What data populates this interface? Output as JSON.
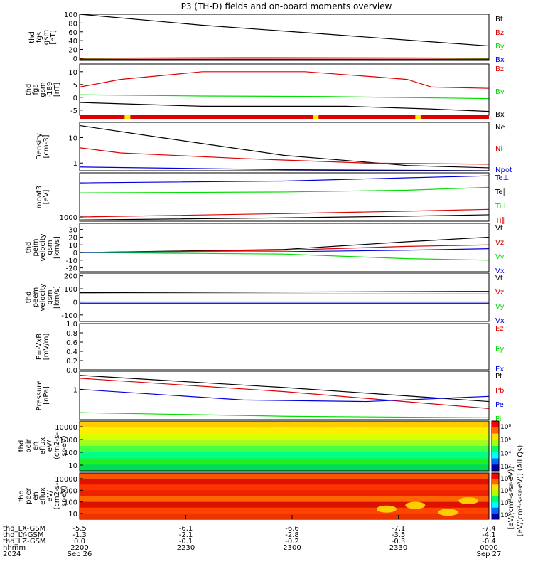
{
  "title": "P3 (TH-D) fields and on-board moments overview",
  "colors": {
    "black": "#000000",
    "red": "#dd0000",
    "green": "#00dd00",
    "blue": "#0000dd",
    "yellow": "#ffee00"
  },
  "chart_data": [
    {
      "type": "line",
      "ylabel": [
        "thd",
        "fgs",
        "gsm",
        "[nT]"
      ],
      "yticks": [
        "100",
        "80",
        "60",
        "40",
        "20",
        "0"
      ],
      "ylim": [
        -5,
        100
      ],
      "series": [
        {
          "name": "Bt",
          "color": "black",
          "points": [
            [
              0,
              100
            ],
            [
              0.3,
              75
            ],
            [
              0.6,
              55
            ],
            [
              0.85,
              38
            ],
            [
              1,
              28
            ]
          ]
        },
        {
          "name": "Bz",
          "color": "red",
          "points": [
            [
              0,
              -2
            ],
            [
              1,
              -2
            ]
          ]
        },
        {
          "name": "By",
          "color": "green",
          "points": [
            [
              0,
              0
            ],
            [
              0.4,
              2
            ],
            [
              0.8,
              1
            ],
            [
              1,
              0
            ]
          ]
        },
        {
          "name": "Bx",
          "color": "blue",
          "points": [
            [
              0,
              -3
            ],
            [
              1,
              -3
            ]
          ]
        }
      ]
    },
    {
      "type": "line",
      "ylabel": [
        "thd",
        "fgs",
        "gsm",
        "-189",
        "[nT]"
      ],
      "yticks": [
        "10",
        "5",
        "0",
        "-5"
      ],
      "ylim": [
        -7,
        13
      ],
      "series": [
        {
          "name": "Bz",
          "color": "red",
          "points": [
            [
              0,
              4
            ],
            [
              0.1,
              7
            ],
            [
              0.3,
              10
            ],
            [
              0.55,
              10
            ],
            [
              0.72,
              8
            ],
            [
              0.8,
              7
            ],
            [
              0.86,
              4
            ],
            [
              1,
              3.5
            ]
          ]
        },
        {
          "name": "By",
          "color": "green",
          "points": [
            [
              0,
              1
            ],
            [
              0.3,
              0.5
            ],
            [
              0.6,
              0.3
            ],
            [
              1,
              -0.5
            ]
          ]
        },
        {
          "name": "Bx",
          "color": "black",
          "points": [
            [
              0,
              -2
            ],
            [
              0.3,
              -3.5
            ],
            [
              0.65,
              -3.5
            ],
            [
              0.85,
              -4.5
            ],
            [
              1,
              -5.5
            ]
          ]
        }
      ]
    },
    {
      "type": "line",
      "ylabel": [
        "Density",
        "[cm-3]"
      ],
      "yticks": [
        "10",
        "1"
      ],
      "log": true,
      "ylim": [
        0.5,
        40
      ],
      "series": [
        {
          "name": "Ne",
          "color": "black",
          "points": [
            [
              0,
              30
            ],
            [
              0.2,
              10
            ],
            [
              0.5,
              2
            ],
            [
              0.8,
              0.8
            ],
            [
              1,
              0.65
            ]
          ]
        },
        {
          "name": "Ni",
          "color": "red",
          "points": [
            [
              0,
              4
            ],
            [
              0.1,
              2.5
            ],
            [
              0.4,
              1.5
            ],
            [
              0.7,
              1
            ],
            [
              1,
              0.9
            ]
          ]
        },
        {
          "name": "Npot",
          "color": "blue",
          "points": [
            [
              0,
              0.7
            ],
            [
              0.5,
              0.55
            ],
            [
              1,
              0.5
            ]
          ]
        }
      ]
    },
    {
      "type": "line",
      "ylabel": [
        "moat3",
        "[eV]"
      ],
      "yticks": [
        "1000"
      ],
      "log": true,
      "ylim": [
        600,
        200000
      ],
      "series": [
        {
          "name": "Te⊥",
          "color": "blue",
          "points": [
            [
              0,
              60000
            ],
            [
              0.5,
              75000
            ],
            [
              0.8,
              110000
            ],
            [
              1,
              140000
            ]
          ]
        },
        {
          "name": "Te∥",
          "color": "black",
          "points": [
            [
              0,
              700
            ],
            [
              0.5,
              900
            ],
            [
              0.8,
              1100
            ],
            [
              1,
              1300
            ]
          ]
        },
        {
          "name": "Ti⊥",
          "color": "green",
          "points": [
            [
              0,
              18000
            ],
            [
              0.5,
              20000
            ],
            [
              0.8,
              25000
            ],
            [
              1,
              35000
            ]
          ]
        },
        {
          "name": "Ti∥",
          "color": "red",
          "points": [
            [
              0,
              1000
            ],
            [
              0.5,
              1500
            ],
            [
              0.8,
              2000
            ],
            [
              1,
              2500
            ]
          ]
        }
      ]
    },
    {
      "type": "line",
      "ylabel": [
        "thd",
        "peim",
        "velocity",
        "gsm",
        "[km/s]"
      ],
      "yticks": [
        "30",
        "20",
        "10",
        "0",
        "-10",
        "-20"
      ],
      "ylim": [
        -25,
        38
      ],
      "series": [
        {
          "name": "Vt",
          "color": "black",
          "points": [
            [
              0,
              0
            ],
            [
              0.5,
              4
            ],
            [
              0.8,
              14
            ],
            [
              1,
              20
            ]
          ]
        },
        {
          "name": "Vz",
          "color": "red",
          "points": [
            [
              0,
              0
            ],
            [
              0.5,
              3
            ],
            [
              0.8,
              8
            ],
            [
              1,
              10
            ]
          ]
        },
        {
          "name": "Vy",
          "color": "green",
          "points": [
            [
              0,
              0
            ],
            [
              0.5,
              -2
            ],
            [
              0.8,
              -8
            ],
            [
              1,
              -10
            ]
          ]
        },
        {
          "name": "Vx",
          "color": "blue",
          "points": [
            [
              0,
              0
            ],
            [
              0.5,
              1
            ],
            [
              0.8,
              3
            ],
            [
              1,
              5
            ]
          ]
        }
      ]
    },
    {
      "type": "line",
      "ylabel": [
        "thd",
        "peem",
        "velocity",
        "gsm",
        "[km/s]"
      ],
      "yticks": [
        "200",
        "100",
        "0",
        "-100"
      ],
      "ylim": [
        -150,
        220
      ],
      "series": [
        {
          "name": "Vt",
          "color": "black",
          "points": [
            [
              0,
              70
            ],
            [
              1,
              80
            ]
          ]
        },
        {
          "name": "Vz",
          "color": "red",
          "points": [
            [
              0,
              60
            ],
            [
              1,
              60
            ]
          ]
        },
        {
          "name": "Vy",
          "color": "green",
          "points": [
            [
              0,
              0
            ],
            [
              1,
              0
            ]
          ]
        },
        {
          "name": "Vx",
          "color": "blue",
          "points": [
            [
              0,
              -10
            ],
            [
              1,
              -10
            ]
          ]
        }
      ]
    },
    {
      "type": "line",
      "ylabel": [
        "E=-VxB",
        "[mV/m]"
      ],
      "yticks": [
        "1.0",
        "0.8",
        "0.6",
        "0.4",
        "0.2",
        "0.0"
      ],
      "ylim": [
        0,
        1
      ],
      "series": [
        {
          "name": "Ez",
          "color": "red",
          "points": []
        },
        {
          "name": "Ey",
          "color": "green",
          "points": []
        },
        {
          "name": "Ex",
          "color": "blue",
          "points": []
        }
      ]
    },
    {
      "type": "line",
      "ylabel": [
        "Pressure",
        "[nPa]"
      ],
      "yticks": [
        "1"
      ],
      "log": true,
      "ylim": [
        0.05,
        6
      ],
      "series": [
        {
          "name": "Pt",
          "color": "black",
          "points": [
            [
              0,
              4
            ],
            [
              0.5,
              1.2
            ],
            [
              1,
              0.3
            ]
          ]
        },
        {
          "name": "Pb",
          "color": "red",
          "points": [
            [
              0,
              3
            ],
            [
              0.5,
              0.8
            ],
            [
              1,
              0.15
            ]
          ]
        },
        {
          "name": "Pe",
          "color": "blue",
          "points": [
            [
              0,
              1
            ],
            [
              0.4,
              0.35
            ],
            [
              0.7,
              0.3
            ],
            [
              1,
              0.5
            ]
          ]
        },
        {
          "name": "Pi",
          "color": "green",
          "points": [
            [
              0,
              0.1
            ],
            [
              0.5,
              0.07
            ],
            [
              1,
              0.06
            ]
          ]
        }
      ]
    },
    {
      "type": "heatmap",
      "ylabel": [
        "thd",
        "peir",
        "en",
        "eflux",
        "eV/",
        "(cm2-s-",
        "sr-eV)"
      ],
      "yticks": [
        "10000",
        "1000",
        "100",
        "10"
      ],
      "colorbar_ticks": [
        "10⁸",
        "10⁶",
        "10⁴",
        "10²"
      ]
    },
    {
      "type": "heatmap",
      "ylabel": [
        "thd",
        "peer",
        "en",
        "eflux",
        "eV/",
        "(cm2-s-",
        "sr-eV)"
      ],
      "yticks": [
        "10000",
        "1000",
        "100",
        "10"
      ],
      "colorbar_ticks": [
        "10⁸",
        "10⁶",
        "10⁴",
        "10²"
      ]
    }
  ],
  "colorbar_label": "[eV/(cm²-s-sr-eV)] (All Qs)",
  "colorbar_label2": "[eV/(cm²-s-sr-eV)]",
  "xaxis": {
    "rows": [
      {
        "label": "thd_LX-GSM",
        "values": [
          "-5.5",
          "-6.1",
          "-6.6",
          "-7.1",
          "-7.4"
        ]
      },
      {
        "label": "thd_LY-GSM",
        "values": [
          "-1.3",
          "-2.1",
          "-2.8",
          "-3.5",
          "-4.1"
        ]
      },
      {
        "label": "thd_LZ-GSM",
        "values": [
          "0.0",
          "-0.1",
          "-0.2",
          "-0.3",
          "-0.4"
        ]
      },
      {
        "label": "hhmm",
        "values": [
          "2200",
          "2230",
          "2300",
          "2330",
          "0000"
        ]
      },
      {
        "label": "2024",
        "values": [
          "Sep 26",
          "",
          "",
          "",
          "Sep 27"
        ]
      }
    ]
  }
}
